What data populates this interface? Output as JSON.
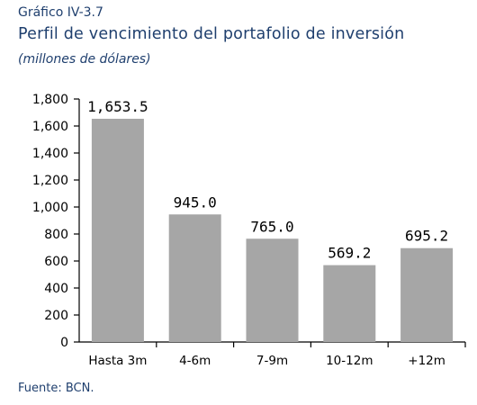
{
  "header": {
    "label": "Gráfico IV-3.7",
    "title": "Perfil de vencimiento del portafolio de inversión",
    "subtitle": "(millones de dólares)"
  },
  "footer": {
    "source": "Fuente: BCN."
  },
  "colors": {
    "bar": "#a6a6a6",
    "title": "#1f3f6e"
  },
  "chart_data": {
    "type": "bar",
    "title": "Perfil de vencimiento del portafolio de inversión",
    "xlabel": "",
    "ylabel": "(millones de dólares)",
    "categories": [
      "Hasta 3m",
      "4-6m",
      "7-9m",
      "10-12m",
      "+12m"
    ],
    "values": [
      1653.5,
      945.0,
      765.0,
      569.2,
      695.2
    ],
    "value_labels": [
      "1,653.5",
      "945.0",
      "765.0",
      "569.2",
      "695.2"
    ],
    "ylim": [
      0,
      1800
    ],
    "yticks": [
      0,
      200,
      400,
      600,
      800,
      1000,
      1200,
      1400,
      1600,
      1800
    ],
    "ytick_labels": [
      "0",
      "200",
      "400",
      "600",
      "800",
      "1,000",
      "1,200",
      "1,400",
      "1,600",
      "1,800"
    ],
    "grid": false,
    "legend": "none"
  }
}
